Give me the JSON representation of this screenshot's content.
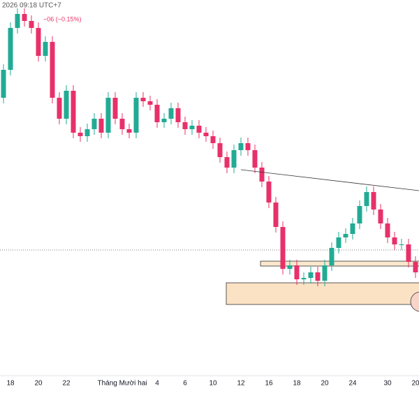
{
  "chart_data": {
    "type": "candlestick",
    "header": "2026 09:18 UTC+7",
    "change": "−06 (−0.15%)",
    "categories": [
      null,
      "18",
      null,
      null,
      null,
      "20",
      null,
      null,
      null,
      "22",
      null,
      null,
      null,
      null,
      null,
      null,
      null,
      "Tháng Mười hai",
      null,
      null,
      null,
      null,
      "4",
      null,
      null,
      null,
      "6",
      null,
      null,
      null,
      "10",
      null,
      null,
      null,
      "12",
      null,
      null,
      null,
      "16",
      null,
      null,
      null,
      "18",
      null,
      null,
      null,
      "20",
      null,
      null,
      null,
      "24",
      null,
      null,
      null,
      null,
      "30",
      null,
      null,
      null,
      "20"
    ],
    "open": [
      400,
      440,
      500,
      520,
      510,
      500,
      460,
      480,
      400,
      370,
      410,
      350,
      345,
      355,
      370,
      350,
      400,
      370,
      355,
      350,
      400,
      395,
      390,
      365,
      370,
      385,
      365,
      355,
      360,
      350,
      345,
      335,
      315,
      300,
      325,
      335,
      325,
      300,
      280,
      250,
      215,
      155,
      160,
      140,
      142,
      150,
      138,
      160,
      185,
      200,
      205,
      220,
      245,
      265,
      240,
      220,
      200,
      190,
      190,
      165
    ],
    "high": [
      448,
      508,
      528,
      528,
      518,
      508,
      488,
      488,
      408,
      418,
      418,
      358,
      363,
      378,
      378,
      408,
      408,
      378,
      363,
      408,
      408,
      403,
      398,
      378,
      393,
      393,
      373,
      368,
      368,
      358,
      353,
      343,
      323,
      333,
      343,
      343,
      333,
      308,
      288,
      258,
      223,
      168,
      168,
      150,
      158,
      158,
      168,
      193,
      208,
      213,
      228,
      253,
      273,
      273,
      248,
      228,
      208,
      198,
      198,
      173
    ],
    "low": [
      392,
      432,
      492,
      502,
      492,
      452,
      452,
      392,
      362,
      362,
      342,
      337,
      337,
      347,
      342,
      342,
      362,
      347,
      342,
      342,
      387,
      382,
      357,
      357,
      362,
      357,
      347,
      347,
      342,
      337,
      327,
      307,
      292,
      292,
      317,
      317,
      292,
      272,
      242,
      207,
      147,
      147,
      132,
      132,
      134,
      130,
      130,
      152,
      177,
      192,
      197,
      212,
      237,
      232,
      212,
      192,
      182,
      182,
      157,
      142
    ],
    "close": [
      440,
      500,
      520,
      510,
      500,
      460,
      480,
      400,
      370,
      410,
      350,
      345,
      355,
      370,
      350,
      400,
      370,
      355,
      350,
      400,
      395,
      390,
      365,
      370,
      385,
      365,
      355,
      360,
      350,
      345,
      335,
      315,
      300,
      325,
      335,
      325,
      300,
      280,
      250,
      215,
      155,
      160,
      140,
      142,
      150,
      138,
      160,
      185,
      200,
      205,
      220,
      245,
      265,
      240,
      220,
      200,
      190,
      190,
      165,
      150
    ],
    "up_color": "#22ab94",
    "down_color": "#e8306a",
    "ylim": [
      0,
      540
    ]
  }
}
